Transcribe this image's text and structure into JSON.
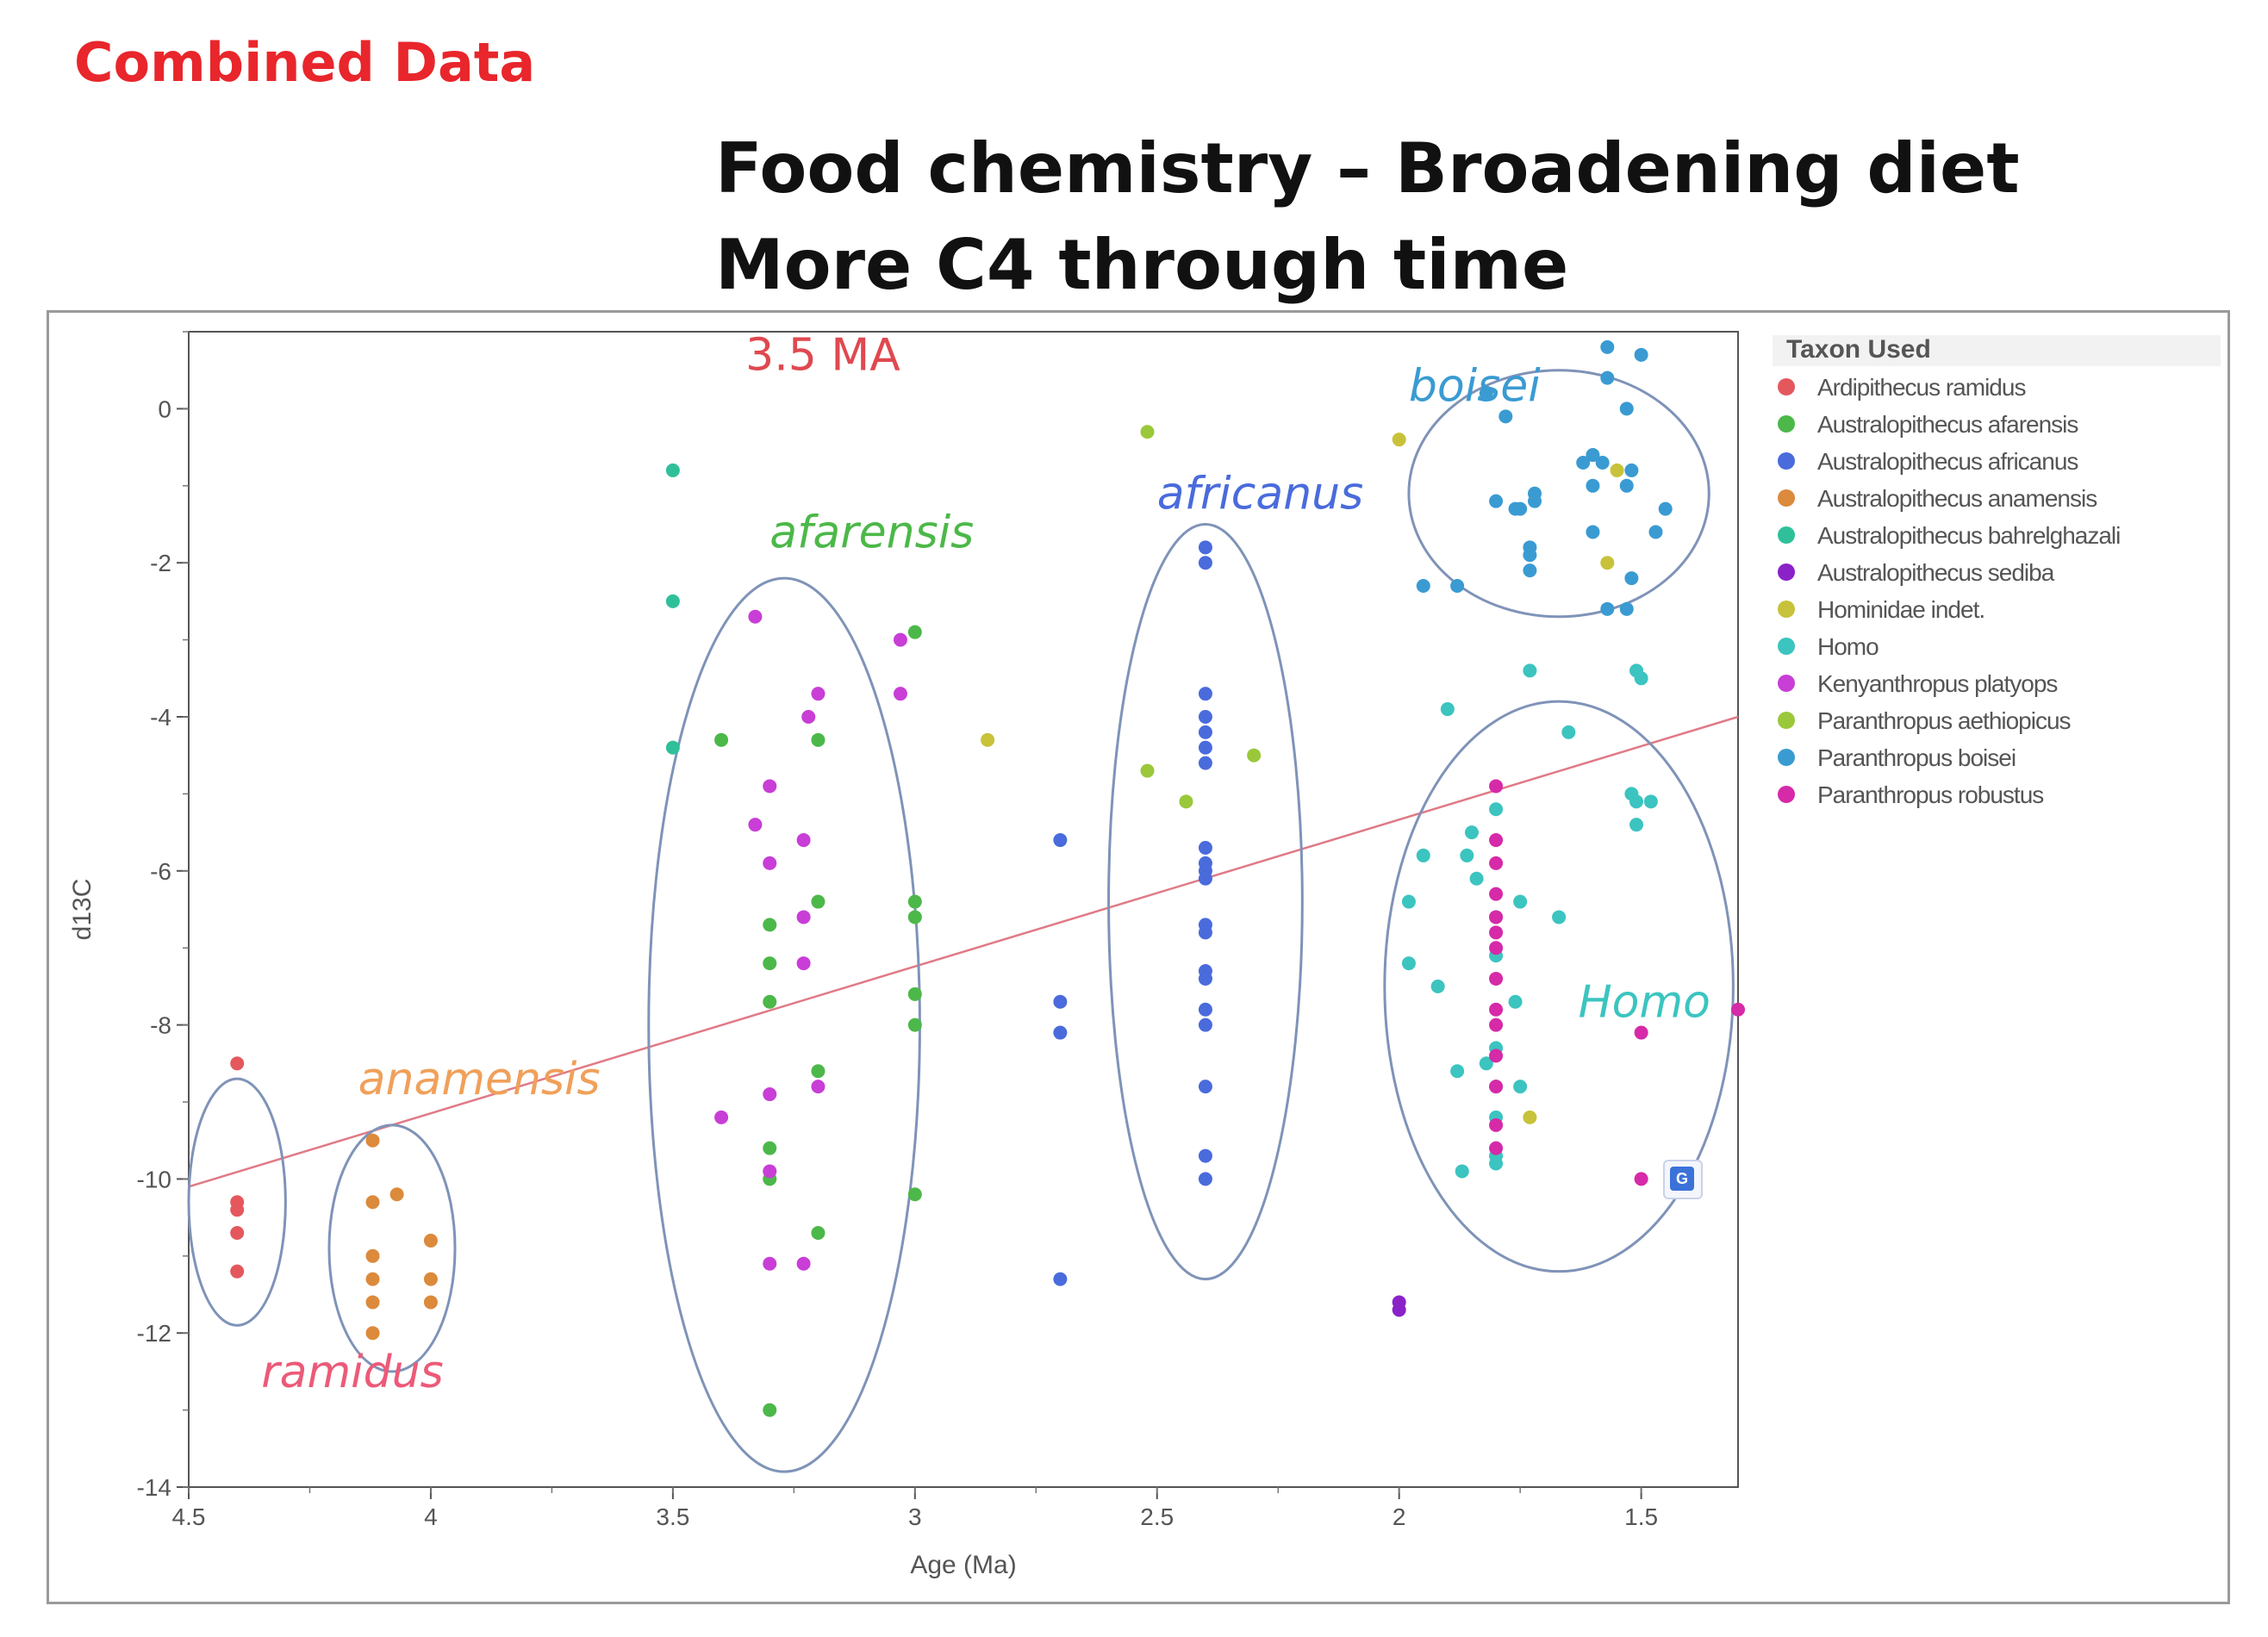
{
  "slide": {
    "label": "Combined Data",
    "title_line1": "Food chemistry – Broadening diet",
    "title_line2": "More C4 through time"
  },
  "chart_data": {
    "type": "scatter",
    "xlabel": "Age (Ma)",
    "ylabel": "d13C",
    "xlim": [
      4.5,
      1.3
    ],
    "x_reversed": true,
    "ylim": [
      -14,
      1
    ],
    "x_ticks": [
      "4.5",
      "4",
      "3.5",
      "3",
      "2.5",
      "2",
      "1.5"
    ],
    "x_tick_values": [
      4.5,
      4.0,
      3.5,
      3.0,
      2.5,
      2.0,
      1.5
    ],
    "y_ticks": [
      "0",
      "-2",
      "-4",
      "-6",
      "-8",
      "-10",
      "-12",
      "-14"
    ],
    "y_tick_values": [
      0,
      -2,
      -4,
      -6,
      -8,
      -10,
      -12,
      -14
    ],
    "grid": false,
    "legend": {
      "title": "Taxon Used",
      "placement": "right"
    },
    "series": [
      {
        "name": "Ardipithecus ramidus",
        "color": "#e4585d",
        "points": [
          [
            4.4,
            -8.5
          ],
          [
            4.4,
            -10.3
          ],
          [
            4.4,
            -10.4
          ],
          [
            4.4,
            -10.7
          ],
          [
            4.4,
            -11.2
          ]
        ]
      },
      {
        "name": "Australopithecus afarensis",
        "color": "#4cb849",
        "points": [
          [
            3.4,
            -4.3
          ],
          [
            3.3,
            -6.7
          ],
          [
            3.3,
            -7.2
          ],
          [
            3.3,
            -7.7
          ],
          [
            3.3,
            -9.6
          ],
          [
            3.3,
            -10.0
          ],
          [
            3.3,
            -13.0
          ],
          [
            3.2,
            -4.3
          ],
          [
            3.2,
            -6.4
          ],
          [
            3.2,
            -8.6
          ],
          [
            3.2,
            -10.7
          ],
          [
            3.0,
            -2.9
          ],
          [
            3.0,
            -6.4
          ],
          [
            3.0,
            -6.6
          ],
          [
            3.0,
            -7.6
          ],
          [
            3.0,
            -8.0
          ],
          [
            3.0,
            -10.2
          ]
        ]
      },
      {
        "name": "Australopithecus africanus",
        "color": "#4a6bdc",
        "points": [
          [
            2.7,
            -5.6
          ],
          [
            2.7,
            -7.7
          ],
          [
            2.7,
            -8.1
          ],
          [
            2.7,
            -11.3
          ],
          [
            2.4,
            -1.8
          ],
          [
            2.4,
            -2.0
          ],
          [
            2.4,
            -3.7
          ],
          [
            2.4,
            -4.0
          ],
          [
            2.4,
            -4.2
          ],
          [
            2.4,
            -4.4
          ],
          [
            2.4,
            -4.6
          ],
          [
            2.4,
            -5.7
          ],
          [
            2.4,
            -5.9
          ],
          [
            2.4,
            -6.0
          ],
          [
            2.4,
            -6.1
          ],
          [
            2.4,
            -6.7
          ],
          [
            2.4,
            -6.8
          ],
          [
            2.4,
            -7.3
          ],
          [
            2.4,
            -7.4
          ],
          [
            2.4,
            -7.8
          ],
          [
            2.4,
            -8.0
          ],
          [
            2.4,
            -8.8
          ],
          [
            2.4,
            -9.7
          ],
          [
            2.4,
            -10.0
          ]
        ]
      },
      {
        "name": "Australopithecus anamensis",
        "color": "#dc8a3c",
        "points": [
          [
            4.12,
            -9.5
          ],
          [
            4.12,
            -10.3
          ],
          [
            4.12,
            -11.0
          ],
          [
            4.12,
            -11.3
          ],
          [
            4.12,
            -11.6
          ],
          [
            4.12,
            -12.0
          ],
          [
            4.07,
            -10.2
          ],
          [
            4.0,
            -10.8
          ],
          [
            4.0,
            -11.3
          ],
          [
            4.0,
            -11.6
          ]
        ]
      },
      {
        "name": "Australopithecus bahrelghazali",
        "color": "#2fc09a",
        "points": [
          [
            3.5,
            -0.8
          ],
          [
            3.5,
            -2.5
          ],
          [
            3.5,
            -4.4
          ]
        ]
      },
      {
        "name": "Australopithecus sediba",
        "color": "#8a22c8",
        "points": [
          [
            2.0,
            -11.6
          ],
          [
            2.0,
            -11.7
          ]
        ]
      },
      {
        "name": "Hominidae indet.",
        "color": "#c8c23a",
        "points": [
          [
            2.85,
            -4.3
          ],
          [
            2.0,
            -0.4
          ],
          [
            1.55,
            -0.8
          ],
          [
            1.57,
            -2.0
          ],
          [
            1.73,
            -9.2
          ]
        ]
      },
      {
        "name": "Homo",
        "color": "#3cc4c0",
        "points": [
          [
            1.9,
            -3.9
          ],
          [
            1.95,
            -5.8
          ],
          [
            1.98,
            -6.4
          ],
          [
            1.98,
            -7.2
          ],
          [
            1.92,
            -7.5
          ],
          [
            1.88,
            -8.6
          ],
          [
            1.87,
            -9.9
          ],
          [
            1.85,
            -5.5
          ],
          [
            1.86,
            -5.8
          ],
          [
            1.84,
            -6.1
          ],
          [
            1.8,
            -5.2
          ],
          [
            1.8,
            -6.6
          ],
          [
            1.8,
            -7.1
          ],
          [
            1.8,
            -8.3
          ],
          [
            1.8,
            -8.8
          ],
          [
            1.8,
            -9.2
          ],
          [
            1.8,
            -9.7
          ],
          [
            1.8,
            -9.8
          ],
          [
            1.82,
            -8.5
          ],
          [
            1.76,
            -7.7
          ],
          [
            1.75,
            -6.4
          ],
          [
            1.75,
            -8.8
          ],
          [
            1.73,
            -3.4
          ],
          [
            1.65,
            -4.2
          ],
          [
            1.67,
            -6.6
          ],
          [
            1.52,
            -5.0
          ],
          [
            1.51,
            -5.1
          ],
          [
            1.51,
            -5.4
          ],
          [
            1.48,
            -5.1
          ],
          [
            1.51,
            -3.4
          ],
          [
            1.5,
            -3.5
          ]
        ]
      },
      {
        "name": "Kenyanthropus platyops",
        "color": "#c83ed6",
        "points": [
          [
            3.33,
            -2.7
          ],
          [
            3.3,
            -4.9
          ],
          [
            3.3,
            -5.9
          ],
          [
            3.33,
            -5.4
          ],
          [
            3.22,
            -4.0
          ],
          [
            3.2,
            -3.7
          ],
          [
            3.23,
            -5.6
          ],
          [
            3.23,
            -6.6
          ],
          [
            3.23,
            -7.2
          ],
          [
            3.3,
            -8.9
          ],
          [
            3.3,
            -9.9
          ],
          [
            3.4,
            -9.2
          ],
          [
            3.2,
            -8.8
          ],
          [
            3.3,
            -11.1
          ],
          [
            3.23,
            -11.1
          ],
          [
            3.03,
            -3.0
          ],
          [
            3.03,
            -3.7
          ]
        ]
      },
      {
        "name": "Paranthropus aethiopicus",
        "color": "#9ac83a",
        "points": [
          [
            2.52,
            -0.3
          ],
          [
            2.52,
            -4.7
          ],
          [
            2.44,
            -5.1
          ],
          [
            2.3,
            -4.5
          ]
        ]
      },
      {
        "name": "Paranthropus boisei",
        "color": "#3a9bd2",
        "points": [
          [
            1.82,
            0.2
          ],
          [
            1.78,
            -0.1
          ],
          [
            1.8,
            -1.2
          ],
          [
            1.75,
            -1.3
          ],
          [
            1.72,
            -1.1
          ],
          [
            1.72,
            -1.2
          ],
          [
            1.73,
            -1.8
          ],
          [
            1.73,
            -1.9
          ],
          [
            1.73,
            -2.1
          ],
          [
            1.76,
            -1.3
          ],
          [
            1.88,
            -2.3
          ],
          [
            1.95,
            -2.3
          ],
          [
            1.62,
            -0.7
          ],
          [
            1.6,
            -0.6
          ],
          [
            1.58,
            -0.7
          ],
          [
            1.6,
            -1.0
          ],
          [
            1.6,
            -1.6
          ],
          [
            1.57,
            0.8
          ],
          [
            1.57,
            0.4
          ],
          [
            1.5,
            0.7
          ],
          [
            1.53,
            0.0
          ],
          [
            1.52,
            -0.8
          ],
          [
            1.53,
            -1.0
          ],
          [
            1.45,
            -1.3
          ],
          [
            1.47,
            -1.6
          ],
          [
            1.52,
            -2.2
          ],
          [
            1.57,
            -2.6
          ],
          [
            1.53,
            -2.6
          ]
        ]
      },
      {
        "name": "Paranthropus robustus",
        "color": "#d62aa8",
        "points": [
          [
            1.8,
            -4.9
          ],
          [
            1.8,
            -5.6
          ],
          [
            1.8,
            -5.9
          ],
          [
            1.8,
            -6.3
          ],
          [
            1.8,
            -6.6
          ],
          [
            1.8,
            -6.8
          ],
          [
            1.8,
            -7.0
          ],
          [
            1.8,
            -7.4
          ],
          [
            1.8,
            -7.8
          ],
          [
            1.8,
            -8.0
          ],
          [
            1.8,
            -8.4
          ],
          [
            1.8,
            -8.8
          ],
          [
            1.8,
            -9.3
          ],
          [
            1.8,
            -9.6
          ],
          [
            1.5,
            -8.1
          ],
          [
            1.5,
            -10.0
          ],
          [
            1.3,
            -7.8
          ]
        ]
      }
    ],
    "trend_line": {
      "color": "#e07a86",
      "from": [
        4.5,
        -10.1
      ],
      "to": [
        1.27,
        -4.0
      ]
    },
    "annotations": [
      {
        "text": "3.5 MA",
        "color": "#e0484f",
        "at": [
          3.35,
          0.5
        ]
      },
      {
        "text": "afarensis",
        "color": "#4cb849",
        "at": [
          3.3,
          -1.8
        ],
        "italic": true
      },
      {
        "text": "africanus",
        "color": "#4a6bdc",
        "at": [
          2.5,
          -1.3
        ],
        "italic": true
      },
      {
        "text": "boisei",
        "color": "#3a9bd2",
        "at": [
          1.98,
          0.1
        ],
        "italic": true
      },
      {
        "text": "anamensis",
        "color": "#f0a05a",
        "at": [
          4.15,
          -8.9
        ],
        "italic": true
      },
      {
        "text": "ramidus",
        "color": "#ec5a78",
        "at": [
          4.35,
          -12.7
        ],
        "italic": true
      },
      {
        "text": "Homo",
        "color": "#3cc4c0",
        "at": [
          1.63,
          -7.9
        ],
        "italic": true
      }
    ],
    "ellipses": [
      {
        "name": "ramidus-group",
        "cx": 4.4,
        "cy": -10.3,
        "rx": 0.1,
        "ry": 1.6
      },
      {
        "name": "anamensis-group",
        "cx": 4.08,
        "cy": -10.9,
        "rx": 0.13,
        "ry": 1.6
      },
      {
        "name": "afarensis-group",
        "cx": 3.27,
        "cy": -8.0,
        "rx": 0.28,
        "ry": 5.8
      },
      {
        "name": "africanus-group",
        "cx": 2.4,
        "cy": -6.4,
        "rx": 0.2,
        "ry": 4.9
      },
      {
        "name": "homo-group",
        "cx": 1.67,
        "cy": -7.5,
        "rx": 0.36,
        "ry": 3.7
      },
      {
        "name": "boisei-group",
        "cx": 1.67,
        "cy": -1.1,
        "rx": 0.31,
        "ry": 1.6
      }
    ]
  }
}
